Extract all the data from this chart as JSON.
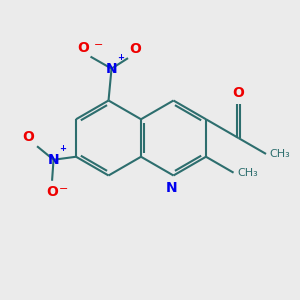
{
  "background_color": "#ebebeb",
  "bond_color": "#2d6e6e",
  "nitrogen_color": "#0000ee",
  "oxygen_color": "#ee0000",
  "figsize": [
    3.0,
    3.0
  ],
  "dpi": 100,
  "lw": 1.5,
  "fs": 9,
  "xlim": [
    0,
    10
  ],
  "ylim": [
    0,
    10
  ]
}
